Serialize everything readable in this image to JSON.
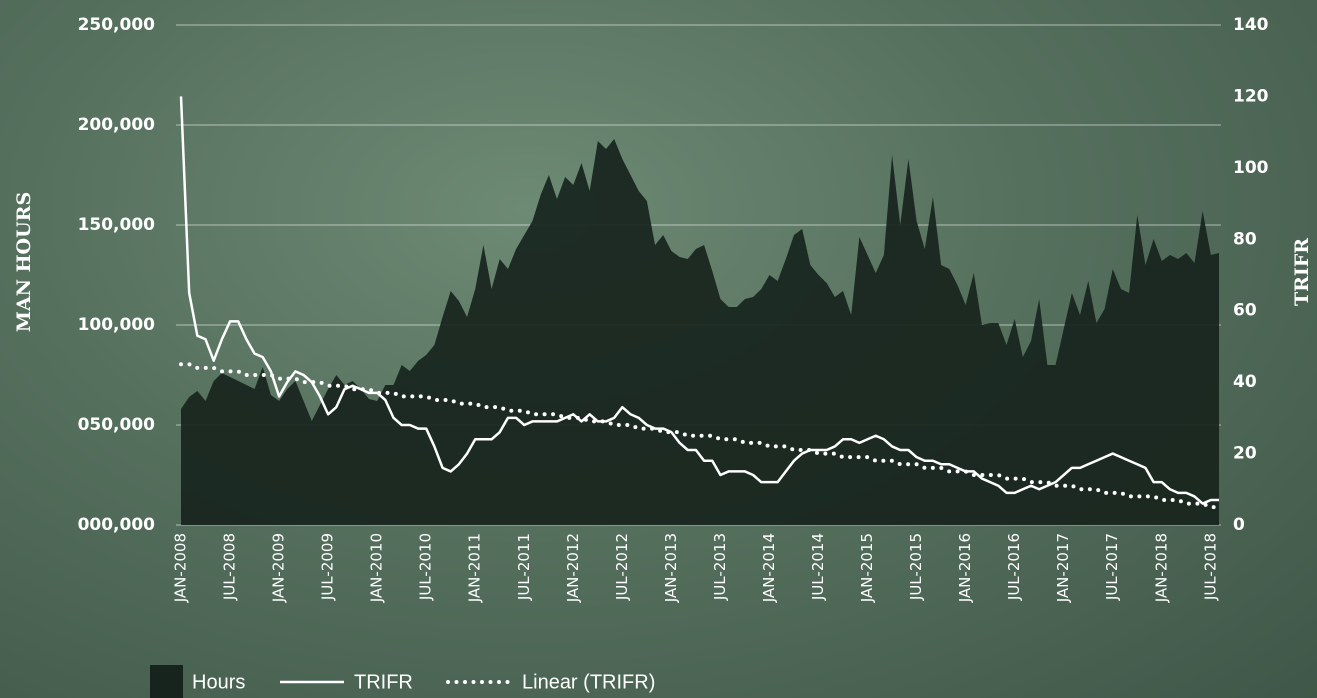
{
  "chart_data": {
    "type": "combo",
    "ylabel": "MAN HOURS",
    "y2label": "TRIFR",
    "ylim": [
      0,
      250000
    ],
    "yticks": [
      {
        "value": 0,
        "label": "000,000"
      },
      {
        "value": 50000,
        "label": "050,000"
      },
      {
        "value": 100000,
        "label": "100,000"
      },
      {
        "value": 150000,
        "label": "150,000"
      },
      {
        "value": 200000,
        "label": "200,000"
      },
      {
        "value": 250000,
        "label": "250,000"
      }
    ],
    "y2lim": [
      0,
      140
    ],
    "y2ticks": [
      0,
      20,
      40,
      60,
      80,
      100,
      120,
      140
    ],
    "grid": true,
    "legend": "bottom",
    "categories": [
      "JAN-2008",
      null,
      null,
      null,
      null,
      null,
      "JUL-2008",
      null,
      null,
      null,
      null,
      null,
      "JAN-2009",
      null,
      null,
      null,
      null,
      null,
      "JUL-2009",
      null,
      null,
      null,
      null,
      null,
      "JAN-2010",
      null,
      null,
      null,
      null,
      null,
      "JUL-2010",
      null,
      null,
      null,
      null,
      null,
      "JAN-2011",
      null,
      null,
      null,
      null,
      null,
      "JUL-2011",
      null,
      null,
      null,
      null,
      null,
      "JAN-2012",
      null,
      null,
      null,
      null,
      null,
      "JUL-2012",
      null,
      null,
      null,
      null,
      null,
      "JAN-2013",
      null,
      null,
      null,
      null,
      null,
      "JUL-2013",
      null,
      null,
      null,
      null,
      null,
      "JAN-2014",
      null,
      null,
      null,
      null,
      null,
      "JUL-2014",
      null,
      null,
      null,
      null,
      null,
      "JAN-2015",
      null,
      null,
      null,
      null,
      null,
      "JUL-2015",
      null,
      null,
      null,
      null,
      null,
      "JAN-2016",
      null,
      null,
      null,
      null,
      null,
      "JUL-2016",
      null,
      null,
      null,
      null,
      null,
      "JAN-2017",
      null,
      null,
      null,
      null,
      null,
      "JUL-2017",
      null,
      null,
      null,
      null,
      null,
      "JAN-2018",
      null,
      null,
      null,
      null,
      null,
      "JUL-2018",
      null
    ],
    "series": [
      {
        "name": "Hours",
        "kind": "area",
        "color": "#17241d",
        "axis": "y",
        "values": [
          58000,
          64000,
          67000,
          62000,
          72000,
          76000,
          74000,
          72000,
          70000,
          68000,
          79000,
          65000,
          62000,
          68000,
          72000,
          62000,
          52000,
          60000,
          68000,
          75000,
          70000,
          72000,
          68000,
          63000,
          62000,
          70000,
          70000,
          80000,
          77000,
          82000,
          85000,
          90000,
          104000,
          117000,
          112000,
          104000,
          118000,
          140000,
          118000,
          133000,
          128000,
          138000,
          145000,
          152000,
          165000,
          175000,
          163000,
          174000,
          170000,
          181000,
          167000,
          192000,
          188000,
          193000,
          183000,
          175000,
          167000,
          162000,
          140000,
          145000,
          137000,
          134000,
          133000,
          138000,
          140000,
          127000,
          113000,
          109000,
          109000,
          113000,
          114000,
          118000,
          125000,
          122000,
          133000,
          145000,
          148000,
          130000,
          125000,
          121000,
          114000,
          117000,
          105000,
          144000,
          135000,
          126000,
          135000,
          185000,
          150000,
          183000,
          152000,
          138000,
          164000,
          130000,
          128000,
          120000,
          110000,
          126000,
          100000,
          101000,
          101000,
          90000,
          103000,
          84000,
          92000,
          113000,
          80000,
          80000,
          98000,
          116000,
          105000,
          122000,
          101000,
          108000,
          128000,
          118000,
          116000,
          155000,
          130000,
          143000,
          132000,
          135000,
          133000,
          136000,
          131000,
          157000,
          135000,
          136000
        ]
      },
      {
        "name": "TRIFR",
        "kind": "line",
        "color": "#ffffff",
        "axis": "y2",
        "values": [
          120,
          65,
          53,
          52,
          46,
          52,
          57,
          57,
          52,
          48,
          47,
          43,
          36,
          40,
          43,
          42,
          40,
          36,
          31,
          33,
          38,
          39,
          38,
          37,
          37,
          35,
          30,
          28,
          28,
          27,
          27,
          22,
          16,
          15,
          17,
          20,
          24,
          24,
          24,
          26,
          30,
          30,
          28,
          29,
          29,
          29,
          29,
          30,
          31,
          29,
          31,
          29,
          29,
          30,
          33,
          31,
          30,
          28,
          27,
          27,
          26,
          23,
          21,
          21,
          18,
          18,
          14,
          15,
          15,
          15,
          14,
          12,
          12,
          12,
          15,
          18,
          20,
          21,
          21,
          21,
          22,
          24,
          24,
          23,
          24,
          25,
          24,
          22,
          21,
          21,
          19,
          18,
          18,
          17,
          17,
          16,
          15,
          15,
          13,
          12,
          11,
          9,
          9,
          10,
          11,
          10,
          11,
          12,
          14,
          16,
          16,
          17,
          18,
          19,
          20,
          19,
          18,
          17,
          16,
          12,
          12,
          10,
          9,
          9,
          8,
          6,
          7,
          7
        ]
      },
      {
        "name": "Linear (TRIFR)",
        "kind": "dotted",
        "color": "#ffffff",
        "axis": "y2",
        "values": [
          45,
          45,
          44,
          44,
          44,
          43,
          43,
          43,
          42,
          42,
          42,
          42,
          41,
          41,
          41,
          40,
          40,
          40,
          39,
          39,
          39,
          38,
          38,
          38,
          37,
          37,
          37,
          36,
          36,
          36,
          36,
          35,
          35,
          35,
          34,
          34,
          34,
          33,
          33,
          33,
          32,
          32,
          32,
          31,
          31,
          31,
          31,
          30,
          30,
          30,
          29,
          29,
          29,
          28,
          28,
          28,
          27,
          27,
          27,
          26,
          26,
          26,
          25,
          25,
          25,
          25,
          24,
          24,
          24,
          23,
          23,
          23,
          22,
          22,
          22,
          21,
          21,
          21,
          20,
          20,
          20,
          19,
          19,
          19,
          19,
          18,
          18,
          18,
          17,
          17,
          17,
          16,
          16,
          16,
          15,
          15,
          15,
          14,
          14,
          14,
          14,
          13,
          13,
          13,
          12,
          12,
          12,
          11,
          11,
          11,
          10,
          10,
          10,
          9,
          9,
          9,
          8,
          8,
          8,
          8,
          7,
          7,
          7,
          6,
          6,
          6,
          5,
          5
        ]
      }
    ]
  }
}
